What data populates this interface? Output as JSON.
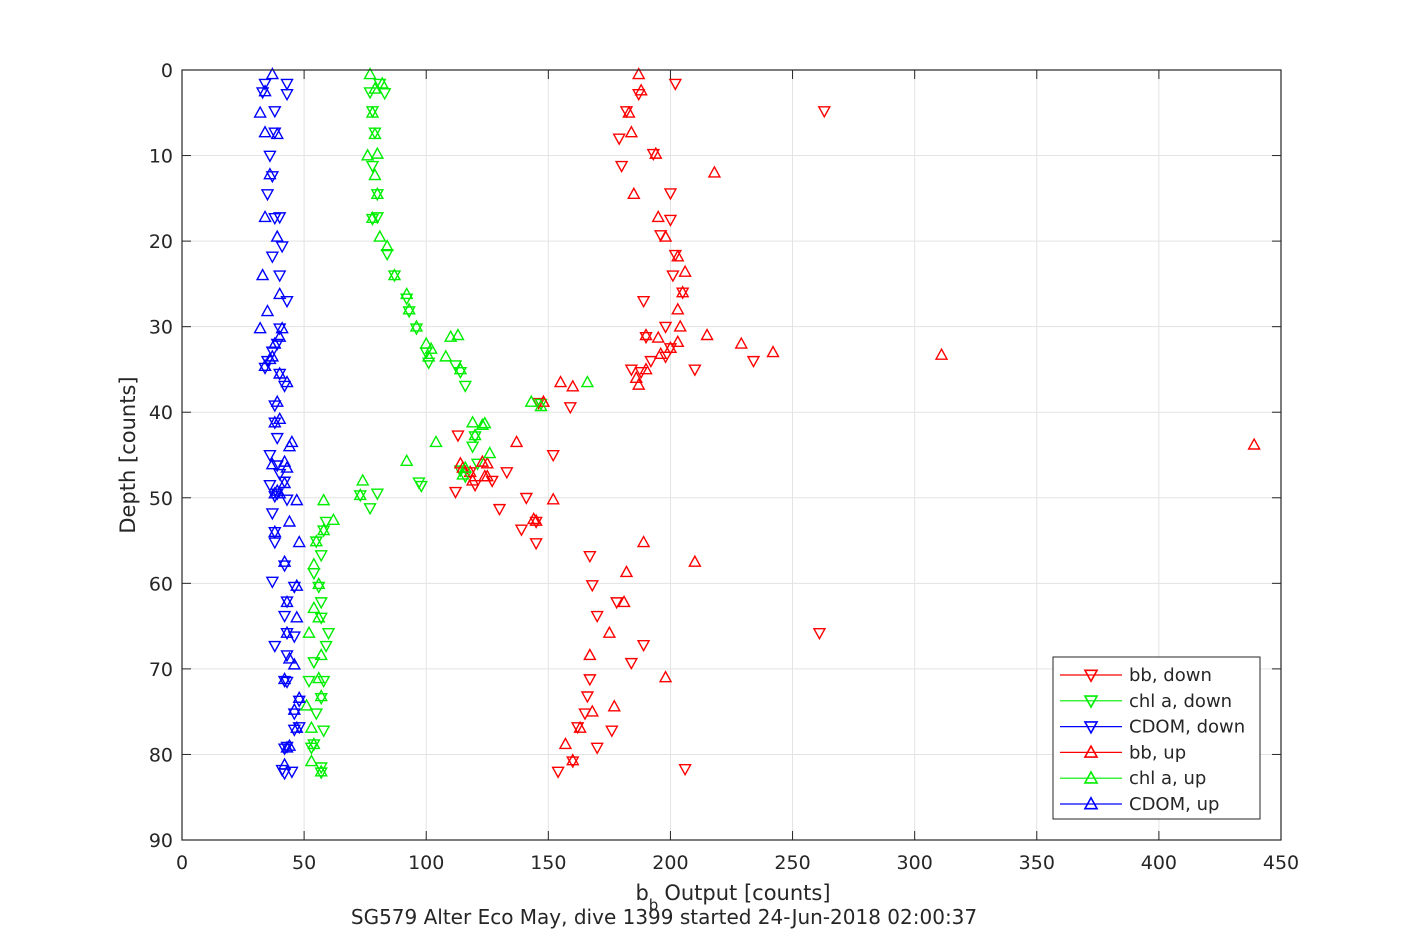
{
  "chart_data": {
    "type": "scatter",
    "title": "SG579 Alter Eco May, dive 1399 started 24-Jun-2018 02:00:37",
    "xlabel": "Output [counts]",
    "xlabel_prefix": "b",
    "xlabel_subscript": "b",
    "ylabel": "Depth [counts]",
    "xlim": [
      0,
      450
    ],
    "ylim": [
      0,
      90
    ],
    "y_reversed": true,
    "grid": true,
    "legend_position": "bottom-right",
    "xticks": [
      "0",
      "50",
      "100",
      "150",
      "200",
      "250",
      "300",
      "350",
      "400",
      "450"
    ],
    "yticks": [
      "0",
      "10",
      "20",
      "30",
      "40",
      "50",
      "60",
      "70",
      "80",
      "90"
    ],
    "series": [
      {
        "name": "bb, down",
        "color": "#ff0000",
        "marker": "triangle-down",
        "points": [
          [
            202,
            1.6
          ],
          [
            187,
            2.8
          ],
          [
            263,
            4.8
          ],
          [
            182,
            4.8
          ],
          [
            179,
            8
          ],
          [
            180,
            11.2
          ],
          [
            193,
            9.8
          ],
          [
            200,
            14.4
          ],
          [
            200,
            17.5
          ],
          [
            196,
            19.3
          ],
          [
            202,
            21.6
          ],
          [
            201,
            24
          ],
          [
            189,
            27
          ],
          [
            205,
            26
          ],
          [
            198,
            30
          ],
          [
            190,
            31.2
          ],
          [
            200,
            32.5
          ],
          [
            198,
            33.5
          ],
          [
            192,
            34
          ],
          [
            184,
            35
          ],
          [
            188,
            35.3
          ],
          [
            210,
            35
          ],
          [
            234,
            34
          ],
          [
            159,
            39.4
          ],
          [
            146,
            38.9
          ],
          [
            113,
            42.7
          ],
          [
            152,
            45
          ],
          [
            118,
            47
          ],
          [
            133,
            47
          ],
          [
            120,
            48.5
          ],
          [
            112,
            49.3
          ],
          [
            127,
            48
          ],
          [
            141,
            50
          ],
          [
            130,
            51.3
          ],
          [
            145,
            52.8
          ],
          [
            139,
            53.7
          ],
          [
            145,
            55.3
          ],
          [
            167,
            56.8
          ],
          [
            168,
            60.2
          ],
          [
            178,
            62.2
          ],
          [
            170,
            63.8
          ],
          [
            189,
            67.2
          ],
          [
            184,
            69.3
          ],
          [
            261,
            65.8
          ],
          [
            167,
            71.2
          ],
          [
            166,
            73.2
          ],
          [
            165,
            75.2
          ],
          [
            162,
            76.8
          ],
          [
            176,
            77.2
          ],
          [
            170,
            79.2
          ],
          [
            160,
            80.8
          ],
          [
            154,
            82
          ],
          [
            206,
            81.7
          ]
        ]
      },
      {
        "name": "chl a, down",
        "color": "#00ee00",
        "marker": "triangle-down",
        "points": [
          [
            81,
            1.6
          ],
          [
            83,
            2.7
          ],
          [
            77,
            2.6
          ],
          [
            78,
            4.8
          ],
          [
            79,
            7.3
          ],
          [
            78,
            11.2
          ],
          [
            80,
            14.5
          ],
          [
            78,
            17.4
          ],
          [
            80,
            17.2
          ],
          [
            84,
            21.5
          ],
          [
            87,
            24
          ],
          [
            92,
            26.7
          ],
          [
            93,
            28.2
          ],
          [
            96,
            30.2
          ],
          [
            100,
            33
          ],
          [
            101,
            34.2
          ],
          [
            112,
            34.5
          ],
          [
            114,
            35.3
          ],
          [
            116,
            36.9
          ],
          [
            147,
            39
          ],
          [
            120,
            42.8
          ],
          [
            119,
            44
          ],
          [
            121,
            46
          ],
          [
            114,
            46.8
          ],
          [
            116,
            47.5
          ],
          [
            97,
            48.2
          ],
          [
            98,
            48.6
          ],
          [
            80,
            49.5
          ],
          [
            73,
            49.7
          ],
          [
            77,
            51.2
          ],
          [
            58,
            53.8
          ],
          [
            59,
            52.8
          ],
          [
            55,
            55.1
          ],
          [
            57,
            56.7
          ],
          [
            54,
            58.8
          ],
          [
            56,
            60.4
          ],
          [
            57,
            62.2
          ],
          [
            57,
            64
          ],
          [
            60,
            65.8
          ],
          [
            59,
            67.3
          ],
          [
            58,
            71.4
          ],
          [
            52,
            71.4
          ],
          [
            54,
            69.2
          ],
          [
            57,
            73.4
          ],
          [
            55,
            75.2
          ],
          [
            58,
            77.2
          ],
          [
            54,
            78.8
          ],
          [
            53,
            79.2
          ],
          [
            57,
            81.5
          ],
          [
            57,
            82.1
          ]
        ]
      },
      {
        "name": "CDOM, down",
        "color": "#0000ff",
        "marker": "triangle-down",
        "points": [
          [
            33,
            2.6
          ],
          [
            34,
            1.6
          ],
          [
            43,
            2.8
          ],
          [
            43,
            1.6
          ],
          [
            38,
            4.8
          ],
          [
            38,
            7.3
          ],
          [
            36,
            10
          ],
          [
            37,
            12.4
          ],
          [
            35,
            14.5
          ],
          [
            38,
            17.3
          ],
          [
            40,
            17.2
          ],
          [
            41,
            20.6
          ],
          [
            37,
            21.8
          ],
          [
            40,
            24
          ],
          [
            43,
            27
          ],
          [
            40,
            30.2
          ],
          [
            39,
            32
          ],
          [
            37,
            32.9
          ],
          [
            35,
            34
          ],
          [
            34,
            34.8
          ],
          [
            40,
            35.5
          ],
          [
            42,
            36.9
          ],
          [
            38,
            39.2
          ],
          [
            38,
            41.2
          ],
          [
            39,
            43
          ],
          [
            36,
            45
          ],
          [
            39,
            46.2
          ],
          [
            40,
            47.2
          ],
          [
            42,
            48.1
          ],
          [
            36,
            48.5
          ],
          [
            38,
            49.8
          ],
          [
            39,
            49.5
          ],
          [
            43,
            50.2
          ],
          [
            37,
            51.8
          ],
          [
            38,
            54
          ],
          [
            38,
            55.2
          ],
          [
            42,
            57.9
          ],
          [
            37,
            59.8
          ],
          [
            46,
            60.4
          ],
          [
            43,
            62.1
          ],
          [
            42,
            63.8
          ],
          [
            43,
            65.8
          ],
          [
            46,
            66.2
          ],
          [
            43,
            68.4
          ],
          [
            38,
            67.3
          ],
          [
            43,
            71.5
          ],
          [
            42,
            71.4
          ],
          [
            46,
            75.2
          ],
          [
            48,
            73.7
          ],
          [
            46,
            77.1
          ],
          [
            48,
            76.8
          ],
          [
            42,
            79.3
          ],
          [
            43,
            79.1
          ],
          [
            41,
            81.8
          ],
          [
            45,
            82
          ],
          [
            42,
            82.2
          ]
        ]
      },
      {
        "name": "bb, up",
        "color": "#ff0000",
        "marker": "triangle-up",
        "points": [
          [
            187,
            0.5
          ],
          [
            188,
            2.4
          ],
          [
            183,
            5
          ],
          [
            184,
            7.3
          ],
          [
            194,
            9.8
          ],
          [
            218,
            12
          ],
          [
            185,
            14.5
          ],
          [
            195,
            17.2
          ],
          [
            198,
            19.5
          ],
          [
            203,
            21.8
          ],
          [
            206,
            23.6
          ],
          [
            205,
            26
          ],
          [
            203,
            28
          ],
          [
            204,
            30
          ],
          [
            215,
            31
          ],
          [
            229,
            32
          ],
          [
            242,
            33
          ],
          [
            311,
            33.3
          ],
          [
            195,
            31.3
          ],
          [
            190,
            31
          ],
          [
            203,
            31.8
          ],
          [
            200,
            32.5
          ],
          [
            196,
            33.2
          ],
          [
            190,
            35
          ],
          [
            186,
            36
          ],
          [
            187,
            36.8
          ],
          [
            155,
            36.5
          ],
          [
            160,
            37
          ],
          [
            148,
            38.8
          ],
          [
            137,
            43.5
          ],
          [
            123,
            45.8
          ],
          [
            114,
            46
          ],
          [
            124,
            47.5
          ],
          [
            125,
            47.5
          ],
          [
            119,
            48
          ],
          [
            115,
            46.5
          ],
          [
            118,
            47
          ],
          [
            125,
            46
          ],
          [
            152,
            50.2
          ],
          [
            144,
            52.5
          ],
          [
            145,
            52.7
          ],
          [
            189,
            55.2
          ],
          [
            210,
            57.5
          ],
          [
            182,
            58.7
          ],
          [
            181,
            62.2
          ],
          [
            175,
            65.8
          ],
          [
            167,
            68.4
          ],
          [
            198,
            71
          ],
          [
            177,
            74.4
          ],
          [
            163,
            76.9
          ],
          [
            168,
            75
          ],
          [
            157,
            78.8
          ],
          [
            160,
            80.7
          ],
          [
            439,
            43.8
          ]
        ]
      },
      {
        "name": "chl a, up",
        "color": "#00ee00",
        "marker": "triangle-up",
        "points": [
          [
            77,
            0.5
          ],
          [
            82,
            1.6
          ],
          [
            79,
            2.2
          ],
          [
            78,
            5
          ],
          [
            79,
            7.5
          ],
          [
            80,
            9.8
          ],
          [
            76,
            10
          ],
          [
            79,
            12.3
          ],
          [
            80,
            14.5
          ],
          [
            78,
            17.3
          ],
          [
            81,
            19.5
          ],
          [
            84,
            20.6
          ],
          [
            87,
            24
          ],
          [
            92,
            26.2
          ],
          [
            93,
            28
          ],
          [
            96,
            30
          ],
          [
            100,
            32
          ],
          [
            101,
            33.5
          ],
          [
            102,
            32.6
          ],
          [
            108,
            33.5
          ],
          [
            110,
            31.2
          ],
          [
            113,
            31
          ],
          [
            114,
            35
          ],
          [
            166,
            36.5
          ],
          [
            143,
            38.8
          ],
          [
            147,
            39.3
          ],
          [
            119,
            41.2
          ],
          [
            124,
            41.3
          ],
          [
            123,
            41.5
          ],
          [
            104,
            43.5
          ],
          [
            120,
            42.7
          ],
          [
            126,
            44.8
          ],
          [
            116,
            46.5
          ],
          [
            115,
            47.3
          ],
          [
            92,
            45.7
          ],
          [
            74,
            48
          ],
          [
            73,
            49.7
          ],
          [
            58,
            50.3
          ],
          [
            62,
            52.6
          ],
          [
            58,
            53.8
          ],
          [
            55,
            55.1
          ],
          [
            54,
            57.8
          ],
          [
            56,
            60.1
          ],
          [
            54,
            62.9
          ],
          [
            56,
            64
          ],
          [
            52,
            65.8
          ],
          [
            57,
            68.4
          ],
          [
            56,
            71.1
          ],
          [
            57,
            73.2
          ],
          [
            51,
            74.3
          ],
          [
            53,
            76.9
          ],
          [
            54,
            78.8
          ],
          [
            53,
            80.8
          ],
          [
            57,
            82
          ]
        ]
      },
      {
        "name": "CDOM, up",
        "color": "#0000ff",
        "marker": "triangle-up",
        "points": [
          [
            37,
            0.5
          ],
          [
            34,
            2.5
          ],
          [
            32,
            5
          ],
          [
            34,
            7.3
          ],
          [
            39,
            7.5
          ],
          [
            36,
            12.2
          ],
          [
            34,
            17.2
          ],
          [
            39,
            19.5
          ],
          [
            33,
            24
          ],
          [
            40,
            26.2
          ],
          [
            35,
            28.2
          ],
          [
            32,
            30.2
          ],
          [
            41,
            30.2
          ],
          [
            40,
            31.2
          ],
          [
            38,
            32
          ],
          [
            37,
            33.5
          ],
          [
            36,
            33.8
          ],
          [
            34,
            34.6
          ],
          [
            40,
            35.5
          ],
          [
            43,
            36.5
          ],
          [
            39,
            38.8
          ],
          [
            40,
            40.8
          ],
          [
            38,
            41.2
          ],
          [
            45,
            43.5
          ],
          [
            44,
            44
          ],
          [
            37,
            46.1
          ],
          [
            42,
            45.8
          ],
          [
            43,
            46.5
          ],
          [
            42,
            48.3
          ],
          [
            39,
            49.2
          ],
          [
            38,
            49.5
          ],
          [
            40,
            49.5
          ],
          [
            47,
            50.3
          ],
          [
            44,
            52.8
          ],
          [
            38,
            54
          ],
          [
            48,
            55.2
          ],
          [
            42,
            57.5
          ],
          [
            47,
            60.3
          ],
          [
            43,
            62.2
          ],
          [
            47,
            64
          ],
          [
            43,
            65.8
          ],
          [
            44,
            68.8
          ],
          [
            46,
            69.5
          ],
          [
            42,
            71.2
          ],
          [
            48,
            73.4
          ],
          [
            46,
            74.8
          ],
          [
            47,
            76.9
          ],
          [
            43,
            79.2
          ],
          [
            44,
            79
          ],
          [
            42,
            81.2
          ]
        ]
      }
    ]
  }
}
